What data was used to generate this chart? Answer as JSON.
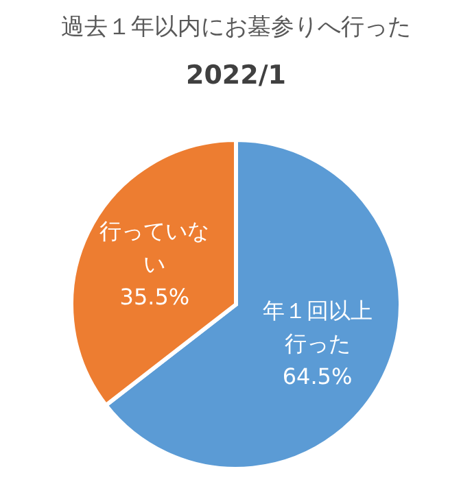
{
  "chart_data": {
    "type": "pie",
    "title": "過去１年以内にお墓参りへ行った",
    "subtitle": "2022/1",
    "categories": [
      "年１回以上行った",
      "行っていない"
    ],
    "values": [
      64.5,
      35.5
    ],
    "value_labels": [
      "64.5%",
      "35.5%"
    ],
    "colors": [
      "#5b9bd5",
      "#ed7d31"
    ],
    "legend": false
  }
}
